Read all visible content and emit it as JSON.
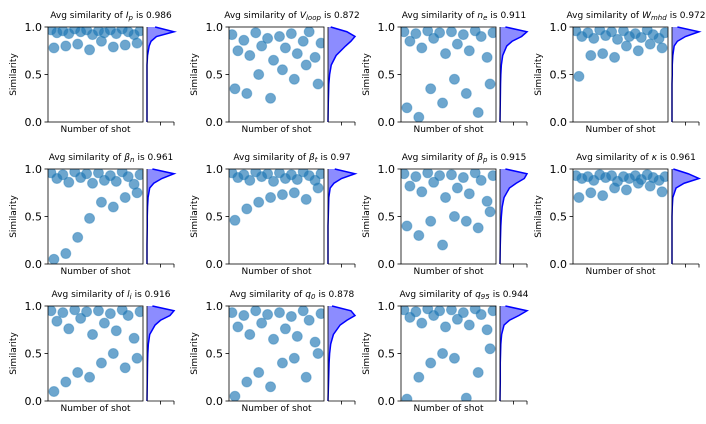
{
  "chart_data": [
    {
      "type": "scatter",
      "title_start": "Avg similarity of",
      "symbol": "I",
      "subscript": "p",
      "title_end": "is 0.986",
      "xlabel": "Number of shot",
      "ylabel": "Similarity",
      "color": "#1f77b4",
      "xlim": [
        0,
        96
      ],
      "ylim": [
        0,
        1
      ],
      "yticks": [
        {
          "value": 0,
          "label": "0.0"
        },
        {
          "value": 0.5,
          "label": "0.5"
        },
        {
          "value": 1,
          "label": "1.0"
        }
      ],
      "x": [
        3,
        9,
        15,
        21,
        27,
        33,
        39,
        45,
        51,
        57,
        63,
        69,
        75,
        81,
        87,
        93,
        6,
        18,
        30,
        42,
        54,
        66,
        78,
        90
      ],
      "values": [
        0.97,
        0.94,
        0.96,
        0.93,
        0.98,
        0.95,
        0.97,
        0.92,
        0.96,
        0.94,
        0.97,
        0.93,
        0.98,
        0.95,
        0.92,
        0.96,
        0.78,
        0.8,
        0.82,
        0.76,
        0.85,
        0.79,
        0.81,
        0.83
      ],
      "kde": {
        "y": [
          0,
          0.2,
          0.4,
          0.5,
          0.6,
          0.7,
          0.8,
          0.85,
          0.9,
          0.95,
          1
        ],
        "density": [
          0,
          0,
          0,
          0,
          0,
          0.02,
          0.08,
          0.15,
          0.35,
          1,
          0.3
        ]
      },
      "kde_xlim": [
        0,
        1
      ]
    },
    {
      "type": "scatter",
      "title_start": "Avg similarity of",
      "symbol": "V",
      "subscript": "loop",
      "title_end": "is 0.872",
      "xlabel": "Number of shot",
      "ylabel": "Similarity",
      "color": "#1f77b4",
      "xlim": [
        0,
        96
      ],
      "ylim": [
        0,
        1
      ],
      "yticks": [
        {
          "value": 0,
          "label": "0.0"
        },
        {
          "value": 0.5,
          "label": "0.5"
        },
        {
          "value": 1,
          "label": "1.0"
        }
      ],
      "x": [
        3,
        9,
        15,
        21,
        27,
        33,
        39,
        45,
        51,
        57,
        63,
        69,
        75,
        81,
        87,
        93,
        6,
        18,
        30,
        42,
        54,
        66,
        78,
        90
      ],
      "values": [
        0.92,
        0.75,
        0.86,
        0.7,
        0.94,
        0.8,
        0.88,
        0.65,
        0.9,
        0.78,
        0.93,
        0.72,
        0.85,
        0.95,
        0.68,
        0.83,
        0.35,
        0.3,
        0.5,
        0.25,
        0.55,
        0.45,
        0.6,
        0.4
      ],
      "kde": {
        "y": [
          0,
          0.2,
          0.4,
          0.5,
          0.6,
          0.7,
          0.8,
          0.85,
          0.9,
          0.95,
          1
        ],
        "density": [
          0,
          0.01,
          0.03,
          0.06,
          0.12,
          0.3,
          0.65,
          0.85,
          1,
          0.7,
          0.1
        ]
      },
      "kde_xlim": [
        0,
        1
      ]
    },
    {
      "type": "scatter",
      "title_start": "Avg similarity of",
      "symbol": "n",
      "subscript": "e",
      "title_end": "is 0.911",
      "xlabel": "Number of shot",
      "ylabel": "Similarity",
      "color": "#1f77b4",
      "xlim": [
        0,
        96
      ],
      "ylim": [
        0,
        1
      ],
      "yticks": [
        {
          "value": 0,
          "label": "0.0"
        },
        {
          "value": 0.5,
          "label": "0.5"
        },
        {
          "value": 1,
          "label": "1.0"
        }
      ],
      "x": [
        3,
        9,
        15,
        21,
        27,
        33,
        39,
        45,
        51,
        57,
        63,
        69,
        75,
        81,
        87,
        93,
        6,
        18,
        30,
        42,
        54,
        66,
        78,
        90
      ],
      "values": [
        0.95,
        0.85,
        0.93,
        0.78,
        0.96,
        0.88,
        0.94,
        0.72,
        0.95,
        0.82,
        0.92,
        0.75,
        0.96,
        0.9,
        0.68,
        0.94,
        0.15,
        0.05,
        0.35,
        0.2,
        0.45,
        0.3,
        0.1,
        0.4
      ],
      "kde": {
        "y": [
          0,
          0.2,
          0.4,
          0.5,
          0.6,
          0.7,
          0.8,
          0.85,
          0.9,
          0.95,
          1
        ],
        "density": [
          0,
          0.01,
          0.02,
          0.03,
          0.05,
          0.1,
          0.25,
          0.45,
          0.8,
          1,
          0.2
        ]
      },
      "kde_xlim": [
        0,
        1
      ]
    },
    {
      "type": "scatter",
      "title_start": "Avg similarity of",
      "symbol": "W",
      "subscript": "mhd",
      "title_end": "is 0.972",
      "xlabel": "Number of shot",
      "ylabel": "Similarity",
      "color": "#1f77b4",
      "xlim": [
        0,
        96
      ],
      "ylim": [
        0,
        1
      ],
      "yticks": [
        {
          "value": 0,
          "label": "0.0"
        },
        {
          "value": 0.5,
          "label": "0.5"
        },
        {
          "value": 1,
          "label": "1.0"
        }
      ],
      "x": [
        3,
        9,
        15,
        21,
        27,
        33,
        39,
        45,
        51,
        57,
        63,
        69,
        75,
        81,
        87,
        93,
        6,
        18,
        30,
        42,
        54,
        66,
        78,
        90
      ],
      "values": [
        0.96,
        0.9,
        0.94,
        0.88,
        0.97,
        0.91,
        0.95,
        0.87,
        0.96,
        0.9,
        0.93,
        0.89,
        0.97,
        0.92,
        0.88,
        0.94,
        0.48,
        0.7,
        0.72,
        0.68,
        0.8,
        0.75,
        0.82,
        0.78
      ],
      "kde": {
        "y": [
          0,
          0.2,
          0.4,
          0.5,
          0.6,
          0.7,
          0.8,
          0.85,
          0.9,
          0.95,
          1
        ],
        "density": [
          0,
          0,
          0,
          0.01,
          0.01,
          0.03,
          0.08,
          0.2,
          0.5,
          1,
          0.2
        ]
      },
      "kde_xlim": [
        0,
        1
      ]
    },
    {
      "type": "scatter",
      "title_start": "Avg similarity of",
      "symbol": "β",
      "subscript": "n",
      "title_end": "is 0.961",
      "xlabel": "Number of shot",
      "ylabel": "Similarity",
      "color": "#1f77b4",
      "xlim": [
        0,
        96
      ],
      "ylim": [
        0,
        1
      ],
      "yticks": [
        {
          "value": 0,
          "label": "0.0"
        },
        {
          "value": 0.5,
          "label": "0.5"
        },
        {
          "value": 1,
          "label": "1.0"
        }
      ],
      "x": [
        3,
        9,
        15,
        21,
        27,
        33,
        39,
        45,
        51,
        57,
        63,
        69,
        75,
        81,
        87,
        93,
        6,
        18,
        30,
        42,
        54,
        66,
        78,
        90
      ],
      "values": [
        0.96,
        0.9,
        0.94,
        0.86,
        0.97,
        0.91,
        0.95,
        0.85,
        0.96,
        0.88,
        0.93,
        0.87,
        0.97,
        0.92,
        0.84,
        0.94,
        0.05,
        0.11,
        0.28,
        0.48,
        0.65,
        0.6,
        0.7,
        0.75
      ],
      "kde": {
        "y": [
          0,
          0.2,
          0.4,
          0.5,
          0.6,
          0.7,
          0.8,
          0.85,
          0.9,
          0.95,
          1
        ],
        "density": [
          0,
          0,
          0.01,
          0.01,
          0.02,
          0.04,
          0.1,
          0.25,
          0.55,
          1,
          0.2
        ]
      },
      "kde_xlim": [
        0,
        1
      ]
    },
    {
      "type": "scatter",
      "title_start": "Avg similarity of",
      "symbol": "β",
      "subscript": "t",
      "title_end": "is 0.97",
      "xlabel": "Number of shot",
      "ylabel": "Similarity",
      "color": "#1f77b4",
      "xlim": [
        0,
        96
      ],
      "ylim": [
        0,
        1
      ],
      "yticks": [
        {
          "value": 0,
          "label": "0.0"
        },
        {
          "value": 0.5,
          "label": "0.5"
        },
        {
          "value": 1,
          "label": "1.0"
        }
      ],
      "x": [
        3,
        9,
        15,
        21,
        27,
        33,
        39,
        45,
        51,
        57,
        63,
        69,
        75,
        81,
        87,
        93,
        6,
        18,
        30,
        42,
        54,
        66,
        78,
        90
      ],
      "values": [
        0.96,
        0.91,
        0.94,
        0.88,
        0.97,
        0.92,
        0.95,
        0.87,
        0.96,
        0.9,
        0.94,
        0.89,
        0.97,
        0.93,
        0.88,
        0.95,
        0.46,
        0.58,
        0.65,
        0.7,
        0.73,
        0.75,
        0.68,
        0.8
      ],
      "kde": {
        "y": [
          0,
          0.2,
          0.4,
          0.5,
          0.6,
          0.7,
          0.8,
          0.85,
          0.9,
          0.95,
          1
        ],
        "density": [
          0,
          0,
          0,
          0.01,
          0.02,
          0.03,
          0.08,
          0.22,
          0.5,
          1,
          0.25
        ]
      },
      "kde_xlim": [
        0,
        1
      ]
    },
    {
      "type": "scatter",
      "title_start": "Avg similarity of",
      "symbol": "β",
      "subscript": "p",
      "title_end": "is 0.915",
      "xlabel": "Number of shot",
      "ylabel": "Similarity",
      "color": "#1f77b4",
      "xlim": [
        0,
        96
      ],
      "ylim": [
        0,
        1
      ],
      "yticks": [
        {
          "value": 0,
          "label": "0.0"
        },
        {
          "value": 0.5,
          "label": "0.5"
        },
        {
          "value": 1,
          "label": "1.0"
        }
      ],
      "x": [
        3,
        9,
        15,
        21,
        27,
        33,
        39,
        45,
        51,
        57,
        63,
        69,
        75,
        81,
        87,
        93,
        6,
        18,
        30,
        42,
        54,
        66,
        78,
        90
      ],
      "values": [
        0.95,
        0.82,
        0.92,
        0.76,
        0.96,
        0.86,
        0.93,
        0.7,
        0.94,
        0.8,
        0.91,
        0.74,
        0.96,
        0.88,
        0.66,
        0.93,
        0.4,
        0.3,
        0.45,
        0.2,
        0.5,
        0.45,
        0.38,
        0.55
      ],
      "kde": {
        "y": [
          0,
          0.2,
          0.4,
          0.5,
          0.6,
          0.7,
          0.8,
          0.85,
          0.9,
          0.95,
          1
        ],
        "density": [
          0,
          0.01,
          0.03,
          0.05,
          0.08,
          0.15,
          0.35,
          0.6,
          0.9,
          1,
          0.2
        ]
      },
      "kde_xlim": [
        0,
        1
      ]
    },
    {
      "type": "scatter",
      "title_start": "Avg similarity of",
      "symbol": "κ",
      "title_end": "is 0.961",
      "xlabel": "Number of shot",
      "ylabel": "Similarity",
      "color": "#1f77b4",
      "xlim": [
        0,
        96
      ],
      "ylim": [
        0,
        1
      ],
      "yticks": [
        {
          "value": 0,
          "label": "0.0"
        },
        {
          "value": 0.5,
          "label": "0.5"
        },
        {
          "value": 1,
          "label": "1.0"
        }
      ],
      "x": [
        3,
        9,
        15,
        21,
        27,
        33,
        39,
        45,
        51,
        57,
        63,
        69,
        75,
        81,
        87,
        93,
        6,
        18,
        30,
        42,
        54,
        66,
        78,
        90
      ],
      "values": [
        0.93,
        0.9,
        0.92,
        0.88,
        0.94,
        0.91,
        0.93,
        0.87,
        0.92,
        0.9,
        0.93,
        0.89,
        0.94,
        0.91,
        0.88,
        0.92,
        0.7,
        0.75,
        0.72,
        0.8,
        0.78,
        0.85,
        0.82,
        0.76
      ],
      "kde": {
        "y": [
          0,
          0.2,
          0.4,
          0.5,
          0.6,
          0.7,
          0.8,
          0.85,
          0.9,
          0.95,
          1
        ],
        "density": [
          0,
          0,
          0,
          0,
          0.01,
          0.03,
          0.15,
          0.45,
          1,
          0.6,
          0.05
        ]
      },
      "kde_xlim": [
        0,
        1
      ]
    },
    {
      "type": "scatter",
      "title_start": "Avg similarity of",
      "symbol": "l",
      "subscript": "i",
      "title_end": "is 0.916",
      "xlabel": "Number of shot",
      "ylabel": "Similarity",
      "color": "#1f77b4",
      "xlim": [
        0,
        96
      ],
      "ylim": [
        0,
        1
      ],
      "yticks": [
        {
          "value": 0,
          "label": "0.0"
        },
        {
          "value": 0.5,
          "label": "0.5"
        },
        {
          "value": 1,
          "label": "1.0"
        }
      ],
      "x": [
        3,
        9,
        15,
        21,
        27,
        33,
        39,
        45,
        51,
        57,
        63,
        69,
        75,
        81,
        87,
        93,
        6,
        18,
        30,
        42,
        54,
        66,
        78,
        90
      ],
      "values": [
        0.95,
        0.84,
        0.93,
        0.76,
        0.96,
        0.87,
        0.94,
        0.7,
        0.95,
        0.82,
        0.92,
        0.74,
        0.96,
        0.9,
        0.66,
        0.94,
        0.1,
        0.2,
        0.3,
        0.25,
        0.4,
        0.5,
        0.35,
        0.45
      ],
      "kde": {
        "y": [
          0,
          0.2,
          0.4,
          0.5,
          0.6,
          0.7,
          0.8,
          0.85,
          0.9,
          0.95,
          1
        ],
        "density": [
          0,
          0.01,
          0.02,
          0.03,
          0.05,
          0.1,
          0.3,
          0.5,
          0.85,
          1,
          0.2
        ]
      },
      "kde_xlim": [
        0,
        1
      ]
    },
    {
      "type": "scatter",
      "title_start": "Avg similarity of",
      "symbol": "q",
      "subscript": "0",
      "title_end": "is 0.878",
      "xlabel": "Number of shot",
      "ylabel": "Similarity",
      "color": "#1f77b4",
      "xlim": [
        0,
        96
      ],
      "ylim": [
        0,
        1
      ],
      "yticks": [
        {
          "value": 0,
          "label": "0.0"
        },
        {
          "value": 0.5,
          "label": "0.5"
        },
        {
          "value": 1,
          "label": "1.0"
        }
      ],
      "x": [
        3,
        9,
        15,
        21,
        27,
        33,
        39,
        45,
        51,
        57,
        63,
        69,
        75,
        81,
        87,
        93,
        6,
        18,
        30,
        42,
        54,
        66,
        78,
        90
      ],
      "values": [
        0.93,
        0.78,
        0.9,
        0.7,
        0.95,
        0.82,
        0.91,
        0.65,
        0.93,
        0.76,
        0.89,
        0.68,
        0.95,
        0.85,
        0.62,
        0.92,
        0.05,
        0.2,
        0.3,
        0.15,
        0.4,
        0.45,
        0.25,
        0.5
      ],
      "kde": {
        "y": [
          0,
          0.2,
          0.4,
          0.5,
          0.6,
          0.7,
          0.8,
          0.85,
          0.9,
          0.95,
          1
        ],
        "density": [
          0,
          0.02,
          0.04,
          0.06,
          0.1,
          0.2,
          0.45,
          0.7,
          1,
          0.85,
          0.15
        ]
      },
      "kde_xlim": [
        0,
        1
      ]
    },
    {
      "type": "scatter",
      "title_start": "Avg similarity of",
      "symbol": "q",
      "subscript": "95",
      "title_end": "is 0.944",
      "xlabel": "Number of shot",
      "ylabel": "Similarity",
      "color": "#1f77b4",
      "xlim": [
        0,
        96
      ],
      "ylim": [
        0,
        1
      ],
      "yticks": [
        {
          "value": 0,
          "label": "0.0"
        },
        {
          "value": 0.5,
          "label": "0.5"
        },
        {
          "value": 1,
          "label": "1.0"
        }
      ],
      "x": [
        3,
        9,
        15,
        21,
        27,
        33,
        39,
        45,
        51,
        57,
        63,
        69,
        75,
        81,
        87,
        93,
        6,
        18,
        30,
        42,
        54,
        66,
        78,
        90
      ],
      "values": [
        0.96,
        0.88,
        0.94,
        0.82,
        0.97,
        0.9,
        0.95,
        0.78,
        0.96,
        0.86,
        0.93,
        0.8,
        0.97,
        0.91,
        0.75,
        0.95,
        0.02,
        0.25,
        0.4,
        0.5,
        0.45,
        0.03,
        0.3,
        0.55
      ],
      "kde": {
        "y": [
          0,
          0.2,
          0.4,
          0.5,
          0.6,
          0.7,
          0.8,
          0.85,
          0.9,
          0.95,
          1
        ],
        "density": [
          0,
          0.01,
          0.01,
          0.02,
          0.03,
          0.06,
          0.15,
          0.35,
          0.7,
          1,
          0.2
        ]
      },
      "kde_xlim": [
        0,
        1
      ]
    }
  ]
}
